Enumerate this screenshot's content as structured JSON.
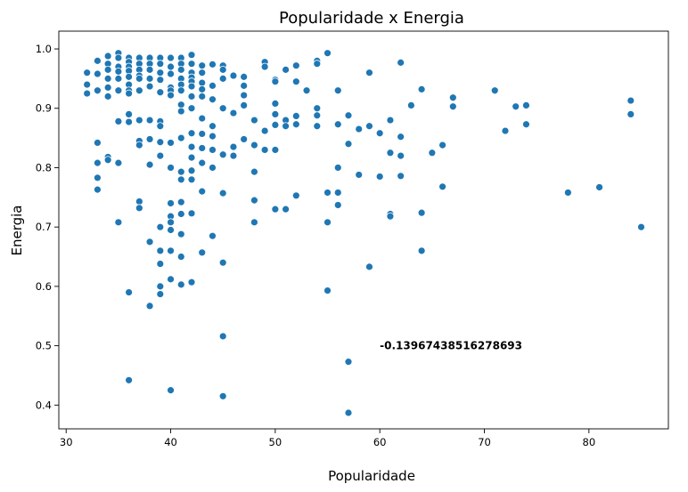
{
  "chart_data": {
    "type": "scatter",
    "title": "Popularidade x Energia",
    "xlabel": "Popularidade",
    "ylabel": "Energia",
    "xlim": [
      29.3,
      87.6
    ],
    "ylim": [
      0.36,
      1.03
    ],
    "xticks": [
      30,
      40,
      50,
      60,
      70,
      80
    ],
    "yticks": [
      0.4,
      0.5,
      0.6,
      0.7,
      0.8,
      0.9,
      1.0
    ],
    "xtick_labels": [
      "30",
      "40",
      "50",
      "60",
      "70",
      "80"
    ],
    "ytick_labels": [
      "0.4",
      "0.5",
      "0.6",
      "0.7",
      "0.8",
      "0.9",
      "1.0"
    ],
    "grid": false,
    "legend": "none",
    "marker_color": "#1f77b4",
    "annotation": {
      "text": "-0.13967438516278693",
      "x": 60,
      "y": 0.5
    },
    "points": [
      [
        32,
        0.96
      ],
      [
        32,
        0.94
      ],
      [
        32,
        0.925
      ],
      [
        33,
        0.98
      ],
      [
        33,
        0.958
      ],
      [
        33,
        0.93
      ],
      [
        33,
        0.842
      ],
      [
        33,
        0.808
      ],
      [
        33,
        0.783
      ],
      [
        33,
        0.763
      ],
      [
        34,
        0.988
      ],
      [
        34,
        0.975
      ],
      [
        34,
        0.965
      ],
      [
        34,
        0.95
      ],
      [
        34,
        0.935
      ],
      [
        34,
        0.92
      ],
      [
        34,
        0.818
      ],
      [
        34,
        0.813
      ],
      [
        35,
        0.993
      ],
      [
        35,
        0.985
      ],
      [
        35,
        0.97
      ],
      [
        35,
        0.962
      ],
      [
        35,
        0.95
      ],
      [
        35,
        0.93
      ],
      [
        35,
        0.878
      ],
      [
        35,
        0.808
      ],
      [
        35,
        0.708
      ],
      [
        36,
        0.985
      ],
      [
        36,
        0.978
      ],
      [
        36,
        0.97
      ],
      [
        36,
        0.963
      ],
      [
        36,
        0.953
      ],
      [
        36,
        0.94
      ],
      [
        36,
        0.93
      ],
      [
        36,
        0.925
      ],
      [
        36,
        0.89
      ],
      [
        36,
        0.877
      ],
      [
        36,
        0.59
      ],
      [
        36,
        0.442
      ],
      [
        37,
        0.985
      ],
      [
        37,
        0.975
      ],
      [
        37,
        0.965
      ],
      [
        37,
        0.955
      ],
      [
        37,
        0.95
      ],
      [
        37,
        0.93
      ],
      [
        37,
        0.88
      ],
      [
        37,
        0.845
      ],
      [
        37,
        0.838
      ],
      [
        37,
        0.743
      ],
      [
        37,
        0.732
      ],
      [
        38,
        0.985
      ],
      [
        38,
        0.975
      ],
      [
        38,
        0.965
      ],
      [
        38,
        0.95
      ],
      [
        38,
        0.937
      ],
      [
        38,
        0.88
      ],
      [
        38,
        0.848
      ],
      [
        38,
        0.805
      ],
      [
        38,
        0.675
      ],
      [
        38,
        0.567
      ],
      [
        39,
        0.985
      ],
      [
        39,
        0.975
      ],
      [
        39,
        0.96
      ],
      [
        39,
        0.948
      ],
      [
        39,
        0.927
      ],
      [
        39,
        0.878
      ],
      [
        39,
        0.87
      ],
      [
        39,
        0.843
      ],
      [
        39,
        0.82
      ],
      [
        39,
        0.7
      ],
      [
        39,
        0.66
      ],
      [
        39,
        0.638
      ],
      [
        39,
        0.6
      ],
      [
        39,
        0.587
      ],
      [
        40,
        0.985
      ],
      [
        40,
        0.97
      ],
      [
        40,
        0.958
      ],
      [
        40,
        0.935
      ],
      [
        40,
        0.93
      ],
      [
        40,
        0.922
      ],
      [
        40,
        0.842
      ],
      [
        40,
        0.8
      ],
      [
        40,
        0.74
      ],
      [
        40,
        0.718
      ],
      [
        40,
        0.708
      ],
      [
        40,
        0.695
      ],
      [
        40,
        0.66
      ],
      [
        40,
        0.612
      ],
      [
        40,
        0.425
      ],
      [
        41,
        0.985
      ],
      [
        41,
        0.975
      ],
      [
        41,
        0.965
      ],
      [
        41,
        0.95
      ],
      [
        41,
        0.94
      ],
      [
        41,
        0.93
      ],
      [
        41,
        0.906
      ],
      [
        41,
        0.895
      ],
      [
        41,
        0.85
      ],
      [
        41,
        0.793
      ],
      [
        41,
        0.78
      ],
      [
        41,
        0.742
      ],
      [
        41,
        0.722
      ],
      [
        41,
        0.688
      ],
      [
        41,
        0.65
      ],
      [
        41,
        0.603
      ],
      [
        42,
        0.99
      ],
      [
        42,
        0.975
      ],
      [
        42,
        0.96
      ],
      [
        42,
        0.952
      ],
      [
        42,
        0.945
      ],
      [
        42,
        0.937
      ],
      [
        42,
        0.92
      ],
      [
        42,
        0.9
      ],
      [
        42,
        0.858
      ],
      [
        42,
        0.835
      ],
      [
        42,
        0.817
      ],
      [
        42,
        0.795
      ],
      [
        42,
        0.78
      ],
      [
        42,
        0.723
      ],
      [
        42,
        0.607
      ],
      [
        43,
        0.972
      ],
      [
        43,
        0.96
      ],
      [
        43,
        0.943
      ],
      [
        43,
        0.932
      ],
      [
        43,
        0.92
      ],
      [
        43,
        0.883
      ],
      [
        43,
        0.857
      ],
      [
        43,
        0.833
      ],
      [
        43,
        0.808
      ],
      [
        43,
        0.76
      ],
      [
        43,
        0.657
      ],
      [
        44,
        0.974
      ],
      [
        44,
        0.938
      ],
      [
        44,
        0.915
      ],
      [
        44,
        0.87
      ],
      [
        44,
        0.853
      ],
      [
        44,
        0.83
      ],
      [
        44,
        0.8
      ],
      [
        44,
        0.685
      ],
      [
        45,
        0.972
      ],
      [
        45,
        0.965
      ],
      [
        45,
        0.95
      ],
      [
        45,
        0.9
      ],
      [
        45,
        0.822
      ],
      [
        45,
        0.757
      ],
      [
        45,
        0.64
      ],
      [
        45,
        0.516
      ],
      [
        45,
        0.415
      ],
      [
        46,
        0.955
      ],
      [
        46,
        0.892
      ],
      [
        46,
        0.835
      ],
      [
        46,
        0.82
      ],
      [
        47,
        0.953
      ],
      [
        47,
        0.938
      ],
      [
        47,
        0.922
      ],
      [
        47,
        0.905
      ],
      [
        47,
        0.848
      ],
      [
        48,
        0.88
      ],
      [
        48,
        0.838
      ],
      [
        48,
        0.793
      ],
      [
        48,
        0.745
      ],
      [
        48,
        0.708
      ],
      [
        49,
        0.978
      ],
      [
        49,
        0.97
      ],
      [
        49,
        0.862
      ],
      [
        49,
        0.83
      ],
      [
        50,
        0.948
      ],
      [
        50,
        0.945
      ],
      [
        50,
        0.908
      ],
      [
        50,
        0.89
      ],
      [
        50,
        0.872
      ],
      [
        50,
        0.83
      ],
      [
        50,
        0.73
      ],
      [
        51,
        0.965
      ],
      [
        51,
        0.88
      ],
      [
        51,
        0.87
      ],
      [
        51,
        0.73
      ],
      [
        52,
        0.972
      ],
      [
        52,
        0.945
      ],
      [
        52,
        0.887
      ],
      [
        52,
        0.873
      ],
      [
        52,
        0.753
      ],
      [
        53,
        0.93
      ],
      [
        54,
        0.98
      ],
      [
        54,
        0.975
      ],
      [
        54,
        0.9
      ],
      [
        54,
        0.888
      ],
      [
        54,
        0.87
      ],
      [
        55,
        0.993
      ],
      [
        55,
        0.758
      ],
      [
        55,
        0.708
      ],
      [
        55,
        0.593
      ],
      [
        56,
        0.93
      ],
      [
        56,
        0.873
      ],
      [
        56,
        0.8
      ],
      [
        56,
        0.758
      ],
      [
        56,
        0.737
      ],
      [
        57,
        0.888
      ],
      [
        57,
        0.84
      ],
      [
        57,
        0.473
      ],
      [
        57,
        0.387
      ],
      [
        58,
        0.865
      ],
      [
        58,
        0.788
      ],
      [
        59,
        0.96
      ],
      [
        59,
        0.87
      ],
      [
        59,
        0.633
      ],
      [
        60,
        0.858
      ],
      [
        60,
        0.785
      ],
      [
        61,
        0.88
      ],
      [
        61,
        0.825
      ],
      [
        61,
        0.722
      ],
      [
        61,
        0.718
      ],
      [
        62,
        0.977
      ],
      [
        62,
        0.852
      ],
      [
        62,
        0.82
      ],
      [
        62,
        0.786
      ],
      [
        63,
        0.905
      ],
      [
        64,
        0.932
      ],
      [
        64,
        0.724
      ],
      [
        64,
        0.66
      ],
      [
        65,
        0.825
      ],
      [
        66,
        0.838
      ],
      [
        66,
        0.768
      ],
      [
        67,
        0.918
      ],
      [
        67,
        0.903
      ],
      [
        71,
        0.93
      ],
      [
        72,
        0.862
      ],
      [
        73,
        0.903
      ],
      [
        74,
        0.905
      ],
      [
        74,
        0.873
      ],
      [
        78,
        0.758
      ],
      [
        81,
        0.767
      ],
      [
        84,
        0.913
      ],
      [
        84,
        0.89
      ],
      [
        85,
        0.7
      ]
    ]
  }
}
